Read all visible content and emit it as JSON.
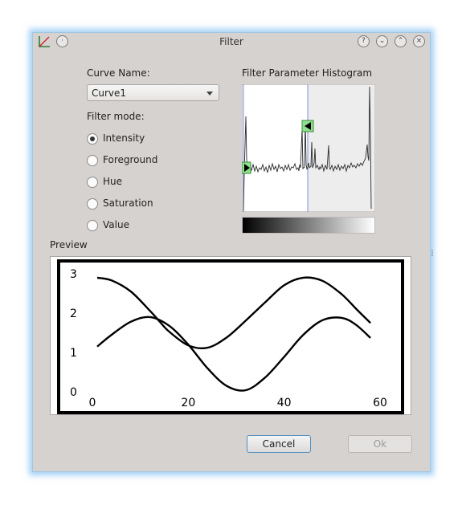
{
  "window": {
    "title": "Filter",
    "buttons": [
      "help",
      "minimize",
      "maximize",
      "close"
    ]
  },
  "curve_name": {
    "label": "Curve Name:",
    "selected": "Curve1"
  },
  "filter_mode": {
    "label": "Filter mode:",
    "options": [
      "Intensity",
      "Foreground",
      "Hue",
      "Saturation",
      "Value"
    ],
    "selected": "Intensity"
  },
  "histogram": {
    "label": "Filter Parameter Histogram",
    "lower_handle": 0.0,
    "upper_handle": 0.49
  },
  "preview": {
    "label": "Preview"
  },
  "chart_data": {
    "type": "line",
    "xlim": [
      0,
      60
    ],
    "ylim": [
      0,
      3
    ],
    "xticks": [
      "0",
      "20",
      "40",
      "60"
    ],
    "yticks": [
      "0",
      "1",
      "2",
      "3"
    ],
    "series": [
      {
        "x": [
          1,
          4,
          8,
          12,
          14,
          16,
          20,
          24,
          28,
          32,
          36,
          40,
          44,
          48,
          52,
          55,
          58
        ],
        "values": [
          2.9,
          2.83,
          2.55,
          2.06,
          1.79,
          1.53,
          1.18,
          1.12,
          1.38,
          1.81,
          2.27,
          2.71,
          2.9,
          2.82,
          2.48,
          2.11,
          1.75
        ]
      },
      {
        "x": [
          1,
          4,
          8,
          12,
          16,
          20,
          24,
          28,
          32,
          36,
          40,
          44,
          48,
          52,
          55,
          58
        ],
        "values": [
          1.15,
          1.45,
          1.78,
          1.9,
          1.68,
          1.2,
          0.6,
          0.15,
          0.04,
          0.36,
          0.89,
          1.45,
          1.82,
          1.88,
          1.7,
          1.37
        ]
      }
    ]
  },
  "buttons": {
    "cancel": "Cancel",
    "ok": "Ok"
  }
}
